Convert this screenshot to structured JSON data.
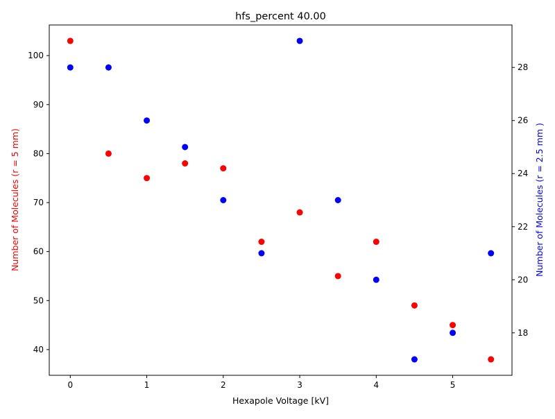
{
  "chart_data": {
    "type": "scatter",
    "title": "hfs_percent 40.00",
    "xlabel": "Hexapole Voltage [kV]",
    "ylabel_left": "Number of Molecules (r = 5 mm)",
    "ylabel_right": "Number of Molecules (r = 2.5 mm )",
    "xlim": [
      -0.275,
      5.775
    ],
    "ylim_left": [
      34.75,
      106.25
    ],
    "ylim_right": [
      16.4,
      29.6
    ],
    "x_ticks": [
      0,
      1,
      2,
      3,
      4,
      5
    ],
    "y_left_ticks": [
      40,
      50,
      60,
      70,
      80,
      90,
      100
    ],
    "y_right_ticks": [
      18,
      20,
      22,
      24,
      26,
      28
    ],
    "grid": false,
    "series": [
      {
        "axis": "left",
        "color": "#ff0000",
        "points": [
          {
            "x": 0,
            "y": 103
          },
          {
            "x": 0.5,
            "y": 80
          },
          {
            "x": 1,
            "y": 75
          },
          {
            "x": 1.5,
            "y": 78
          },
          {
            "x": 2,
            "y": 77
          },
          {
            "x": 2.5,
            "y": 62
          },
          {
            "x": 3,
            "y": 68
          },
          {
            "x": 3.5,
            "y": 55
          },
          {
            "x": 4,
            "y": 62
          },
          {
            "x": 4.5,
            "y": 49
          },
          {
            "x": 5,
            "y": 45
          },
          {
            "x": 5.5,
            "y": 38
          }
        ]
      },
      {
        "axis": "right",
        "color": "#0000ff",
        "points": [
          {
            "x": 0,
            "y": 28
          },
          {
            "x": 0.5,
            "y": 28
          },
          {
            "x": 1,
            "y": 26
          },
          {
            "x": 1.5,
            "y": 25
          },
          {
            "x": 2,
            "y": 23
          },
          {
            "x": 2.5,
            "y": 21
          },
          {
            "x": 3,
            "y": 29
          },
          {
            "x": 3.5,
            "y": 23
          },
          {
            "x": 4,
            "y": 20
          },
          {
            "x": 4.5,
            "y": 17
          },
          {
            "x": 5,
            "y": 18
          },
          {
            "x": 5.5,
            "y": 21
          }
        ]
      }
    ]
  }
}
